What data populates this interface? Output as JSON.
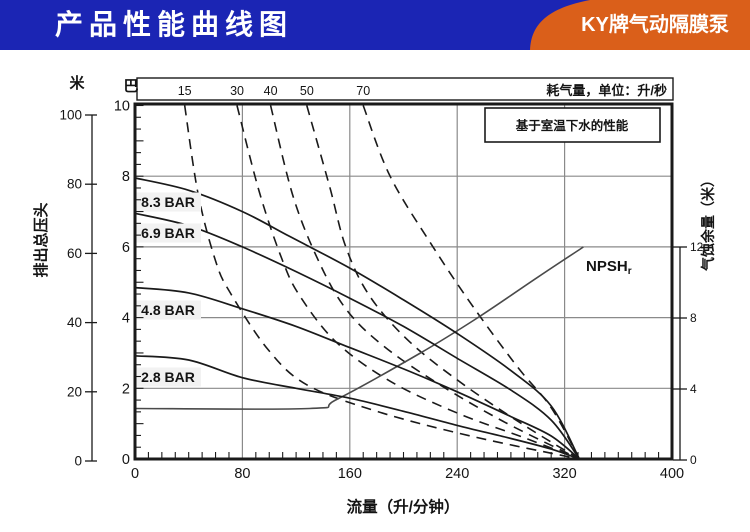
{
  "header": {
    "title": "产品性能曲线图",
    "badge": "KY牌气动隔膜泵"
  },
  "colors": {
    "header_bg": "#1b25b4",
    "badge_bg": "#da5f1a",
    "line": "#1a1a1a",
    "grid": "#8a8a8a",
    "npsh_line": "#4a4a4a",
    "label_bg": "#f2f2f2",
    "text": "#141414"
  },
  "chart_data": {
    "type": "line",
    "note": "基于室温下水的性能",
    "x_axis": {
      "title": "流量（升/分钟）",
      "min": 0,
      "max": 400,
      "major_ticks": [
        0,
        80,
        160,
        240,
        320,
        400
      ],
      "minor_step": 10
    },
    "y_axis_bar": {
      "unit": "巴",
      "min": 0,
      "max": 10,
      "labels": [
        0,
        2,
        4,
        6,
        8,
        10
      ],
      "gridlines": [
        2,
        4,
        6,
        8
      ]
    },
    "y_axis_meters": {
      "unit": "米",
      "axis_title": "排出总压头",
      "min": 0,
      "max": 100,
      "labels": [
        0,
        20,
        40,
        60,
        80,
        100
      ]
    },
    "y_axis_npsh": {
      "axis_title": "气蚀余量（米）",
      "min": 0,
      "max": 12,
      "labels": [
        0,
        4,
        8,
        12
      ]
    },
    "top_axis": {
      "title": "耗气量，单位：升/秒",
      "ticks": [
        {
          "label": "15",
          "flow": 37
        },
        {
          "label": "30",
          "flow": 76
        },
        {
          "label": "40",
          "flow": 101
        },
        {
          "label": "50",
          "flow": 128
        },
        {
          "label": "70",
          "flow": 170
        }
      ]
    },
    "head_curves": [
      {
        "label": "8.3 BAR",
        "air_pressure_bar": 8.3,
        "points": [
          [
            0,
            7.95
          ],
          [
            40,
            7.6
          ],
          [
            80,
            7.0
          ],
          [
            115,
            6.3
          ],
          [
            160,
            5.4
          ],
          [
            200,
            4.5
          ],
          [
            240,
            3.55
          ],
          [
            280,
            2.5
          ],
          [
            310,
            1.5
          ],
          [
            331,
            0
          ]
        ]
      },
      {
        "label": "6.9 BAR",
        "air_pressure_bar": 6.9,
        "points": [
          [
            0,
            6.95
          ],
          [
            40,
            6.6
          ],
          [
            80,
            6.0
          ],
          [
            120,
            5.3
          ],
          [
            160,
            4.55
          ],
          [
            200,
            3.75
          ],
          [
            240,
            2.85
          ],
          [
            280,
            1.95
          ],
          [
            310,
            1.1
          ],
          [
            331,
            0
          ]
        ]
      },
      {
        "label": "4.8 BAR",
        "air_pressure_bar": 4.8,
        "points": [
          [
            0,
            4.85
          ],
          [
            40,
            4.7
          ],
          [
            80,
            4.25
          ],
          [
            120,
            3.75
          ],
          [
            160,
            3.15
          ],
          [
            200,
            2.55
          ],
          [
            240,
            1.9
          ],
          [
            280,
            1.2
          ],
          [
            310,
            0.65
          ],
          [
            331,
            0
          ]
        ]
      },
      {
        "label": "2.8 BAR",
        "air_pressure_bar": 2.8,
        "points": [
          [
            0,
            2.92
          ],
          [
            40,
            2.8
          ],
          [
            80,
            2.3
          ],
          [
            120,
            2.0
          ],
          [
            160,
            1.72
          ],
          [
            200,
            1.35
          ],
          [
            240,
            0.95
          ],
          [
            280,
            0.58
          ],
          [
            310,
            0.28
          ],
          [
            331,
            0
          ]
        ]
      }
    ],
    "air_curves": [
      {
        "label": "15",
        "liters_per_sec": 15,
        "points": [
          [
            37,
            10
          ],
          [
            47,
            7.5
          ],
          [
            60,
            5.6
          ],
          [
            71,
            4.7
          ],
          [
            99,
            3.1
          ],
          [
            128,
            2.1
          ],
          [
            180,
            1.35
          ],
          [
            250,
            0.65
          ],
          [
            331,
            0
          ]
        ]
      },
      {
        "label": "30",
        "liters_per_sec": 30,
        "points": [
          [
            76,
            10
          ],
          [
            93,
            7.5
          ],
          [
            110,
            5.6
          ],
          [
            123,
            4.6
          ],
          [
            150,
            3.3
          ],
          [
            190,
            2.2
          ],
          [
            240,
            1.3
          ],
          [
            290,
            0.6
          ],
          [
            331,
            0
          ]
        ]
      },
      {
        "label": "40",
        "liters_per_sec": 40,
        "points": [
          [
            101,
            10
          ],
          [
            118,
            7.4
          ],
          [
            138,
            5.5
          ],
          [
            158,
            4.2
          ],
          [
            185,
            3.2
          ],
          [
            225,
            2.15
          ],
          [
            275,
            1.05
          ],
          [
            331,
            0
          ]
        ]
      },
      {
        "label": "50",
        "liters_per_sec": 50,
        "points": [
          [
            128,
            10
          ],
          [
            145,
            7.7
          ],
          [
            157,
            6.0
          ],
          [
            175,
            4.6
          ],
          [
            205,
            3.3
          ],
          [
            245,
            2.1
          ],
          [
            290,
            0.95
          ],
          [
            331,
            0
          ]
        ]
      },
      {
        "label": "70",
        "liters_per_sec": 70,
        "points": [
          [
            170,
            10
          ],
          [
            190,
            8.0
          ],
          [
            222,
            6.0
          ],
          [
            252,
            4.3
          ],
          [
            285,
            2.6
          ],
          [
            310,
            1.45
          ],
          [
            331,
            0
          ]
        ]
      }
    ],
    "npsh_curve": {
      "label": "NPSH",
      "subscript": "r",
      "points": [
        [
          0,
          2.9
        ],
        [
          130,
          2.9
        ],
        [
          150,
          3.4
        ],
        [
          212,
          6.0
        ],
        [
          255,
          8.0
        ],
        [
          300,
          10.3
        ],
        [
          334,
          12
        ]
      ]
    }
  }
}
